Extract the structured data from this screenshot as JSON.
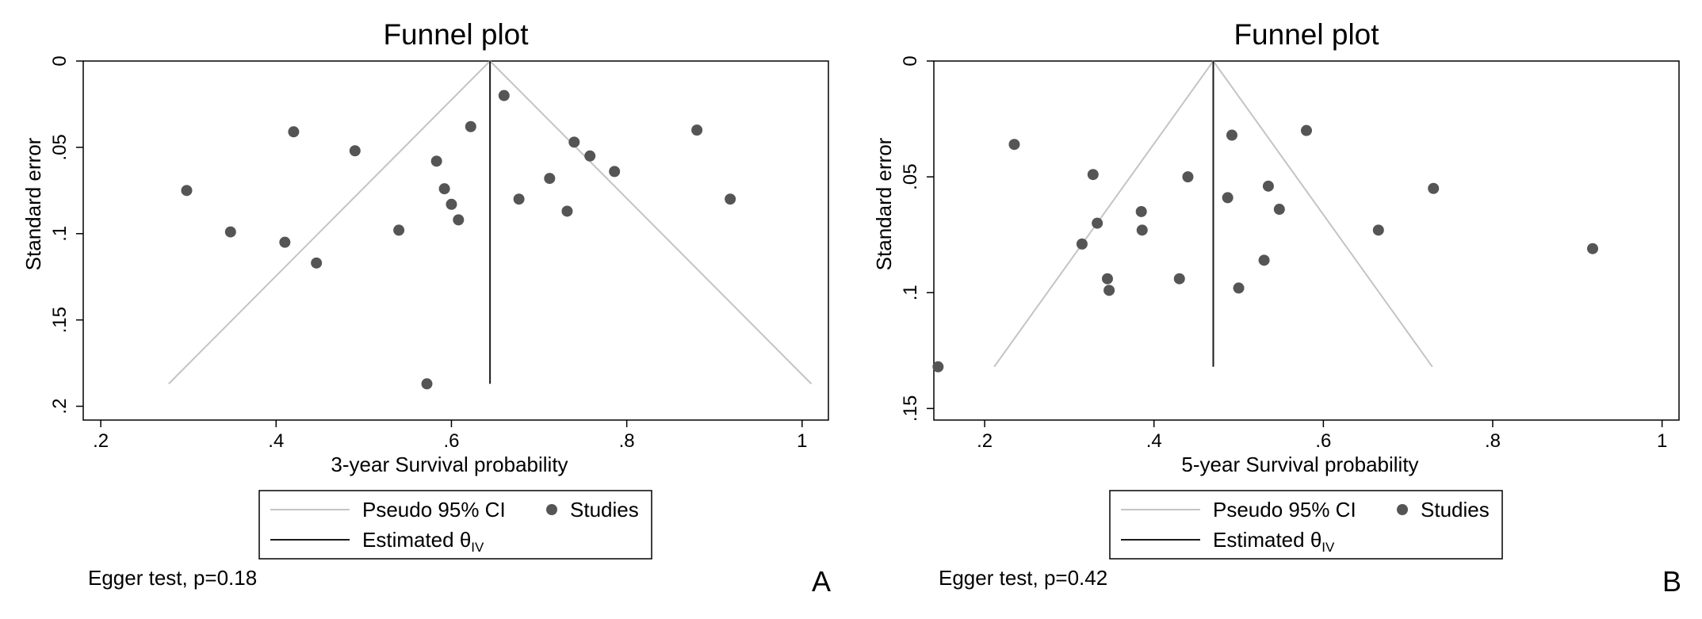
{
  "colors": {
    "ci_line": "#c4c4c4",
    "estimate_line": "#1a1a1a",
    "studies_marker": "#555555",
    "frame": "#000000",
    "background": "#ffffff"
  },
  "chart_data": [
    {
      "type": "scatter",
      "title": "Funnel plot",
      "xlabel": "3-year Survival probability",
      "ylabel": "Standard error",
      "xlim": [
        0.18,
        1.03
      ],
      "ylim": [
        0,
        0.208
      ],
      "y_inverted": true,
      "x_ticks": [
        0.2,
        0.4,
        0.6,
        0.8,
        1
      ],
      "x_tick_labels": [
        ".2",
        ".4",
        ".6",
        ".8",
        "1"
      ],
      "y_ticks": [
        0,
        0.05,
        0.1,
        0.15,
        0.2
      ],
      "y_tick_labels": [
        "0",
        ".05",
        ".1",
        ".15",
        ".2"
      ],
      "estimate": 0.644,
      "ci_max_se": 0.187,
      "legend": {
        "ci": "Pseudo 95% CI",
        "studies": "Studies",
        "estimate_prefix": "Estimated θ",
        "estimate_sub": "IV"
      },
      "legend_position": "bottom",
      "note": "Egger test, p=0.18",
      "panel_label": "A",
      "series": [
        {
          "name": "Studies",
          "points": [
            [
              0.298,
              0.075
            ],
            [
              0.348,
              0.099
            ],
            [
              0.41,
              0.105
            ],
            [
              0.42,
              0.041
            ],
            [
              0.446,
              0.117
            ],
            [
              0.49,
              0.052
            ],
            [
              0.54,
              0.098
            ],
            [
              0.572,
              0.187
            ],
            [
              0.583,
              0.058
            ],
            [
              0.592,
              0.074
            ],
            [
              0.6,
              0.083
            ],
            [
              0.608,
              0.092
            ],
            [
              0.622,
              0.038
            ],
            [
              0.66,
              0.02
            ],
            [
              0.677,
              0.08
            ],
            [
              0.712,
              0.068
            ],
            [
              0.732,
              0.087
            ],
            [
              0.74,
              0.047
            ],
            [
              0.758,
              0.055
            ],
            [
              0.786,
              0.064
            ],
            [
              0.88,
              0.04
            ],
            [
              0.918,
              0.08
            ]
          ]
        }
      ]
    },
    {
      "type": "scatter",
      "title": "Funnel plot",
      "xlabel": "5-year Survival probability",
      "ylabel": "Standard error",
      "xlim": [
        0.14,
        1.02
      ],
      "ylim": [
        0,
        0.155
      ],
      "y_inverted": true,
      "x_ticks": [
        0.2,
        0.4,
        0.6,
        0.8,
        1
      ],
      "x_tick_labels": [
        ".2",
        ".4",
        ".6",
        ".8",
        "1"
      ],
      "y_ticks": [
        0,
        0.05,
        0.1,
        0.15
      ],
      "y_tick_labels": [
        "0",
        ".05",
        ".1",
        ".15"
      ],
      "estimate": 0.47,
      "ci_max_se": 0.132,
      "legend": {
        "ci": "Pseudo 95% CI",
        "studies": "Studies",
        "estimate_prefix": "Estimated θ",
        "estimate_sub": "IV"
      },
      "legend_position": "bottom",
      "note": "Egger test, p=0.42",
      "panel_label": "B",
      "series": [
        {
          "name": "Studies",
          "points": [
            [
              0.145,
              0.132
            ],
            [
              0.235,
              0.036
            ],
            [
              0.315,
              0.079
            ],
            [
              0.328,
              0.049
            ],
            [
              0.333,
              0.07
            ],
            [
              0.345,
              0.094
            ],
            [
              0.347,
              0.099
            ],
            [
              0.385,
              0.065
            ],
            [
              0.386,
              0.073
            ],
            [
              0.43,
              0.094
            ],
            [
              0.44,
              0.05
            ],
            [
              0.487,
              0.059
            ],
            [
              0.492,
              0.032
            ],
            [
              0.5,
              0.098
            ],
            [
              0.53,
              0.086
            ],
            [
              0.535,
              0.054
            ],
            [
              0.548,
              0.064
            ],
            [
              0.58,
              0.03
            ],
            [
              0.665,
              0.073
            ],
            [
              0.73,
              0.055
            ],
            [
              0.918,
              0.081
            ]
          ]
        }
      ]
    }
  ]
}
